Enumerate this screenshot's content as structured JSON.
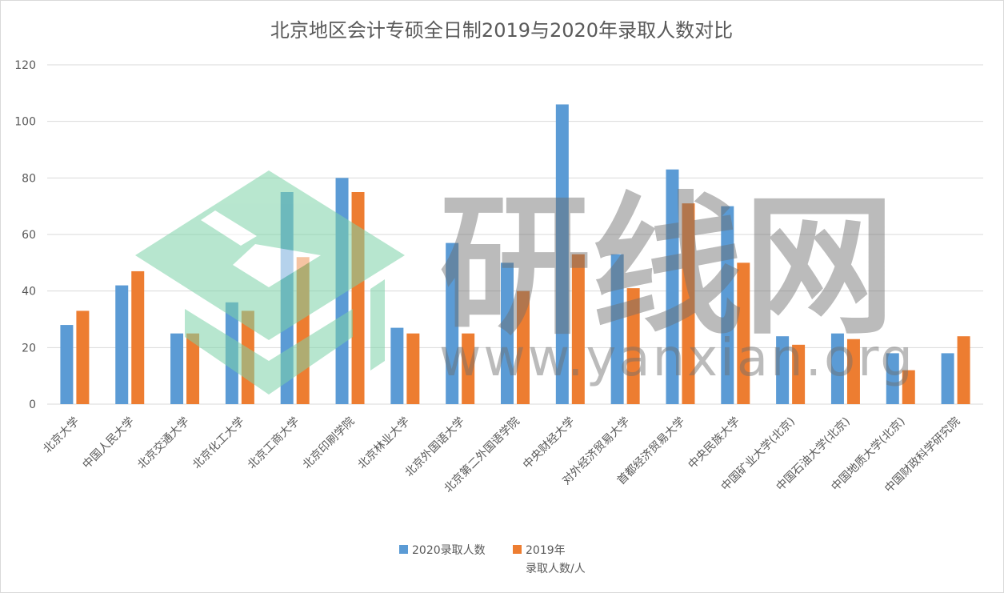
{
  "chart_data": {
    "type": "bar",
    "title": "北京地区会计专硕全日制2019与2020年录取人数对比",
    "xlabel": "",
    "ylabel": "",
    "ylim": [
      0,
      120
    ],
    "yticks": [
      0,
      20,
      40,
      60,
      80,
      100,
      120
    ],
    "grid": true,
    "legend_position": "bottom",
    "categories": [
      "北京大学",
      "中国人民大学",
      "北京交通大学",
      "北京化工大学",
      "北京工商大学",
      "北京印刷学院",
      "北京林业大学",
      "北京外国语大学",
      "北京第二外国语学院",
      "中央财经大学",
      "对外经济贸易大学",
      "首都经济贸易大学",
      "中央民族大学",
      "中国矿业大学(北京)",
      "中国石油大学(北京)",
      "中国地质大学(北京)",
      "中国财政科学研究院"
    ],
    "series": [
      {
        "name": "2020录取人数",
        "color": "#5b9bd5",
        "values": [
          28,
          42,
          25,
          36,
          75,
          80,
          27,
          57,
          50,
          106,
          53,
          83,
          70,
          24,
          25,
          18,
          18
        ]
      },
      {
        "name": "2019年录取人数/人",
        "color": "#ed7d31",
        "values": [
          33,
          47,
          25,
          33,
          52,
          75,
          25,
          25,
          40,
          53,
          41,
          71,
          50,
          21,
          23,
          12,
          24
        ]
      }
    ],
    "legend": {
      "series1_label": "2020录取人数",
      "series2_label_line1": "2019年",
      "series2_label_line2": "录取人数/人"
    }
  },
  "watermark": {
    "brand": "研线网",
    "url": "www.yanxian.org",
    "colors": {
      "logo": "#7dd3a8",
      "text": "#6e6e6e"
    }
  }
}
